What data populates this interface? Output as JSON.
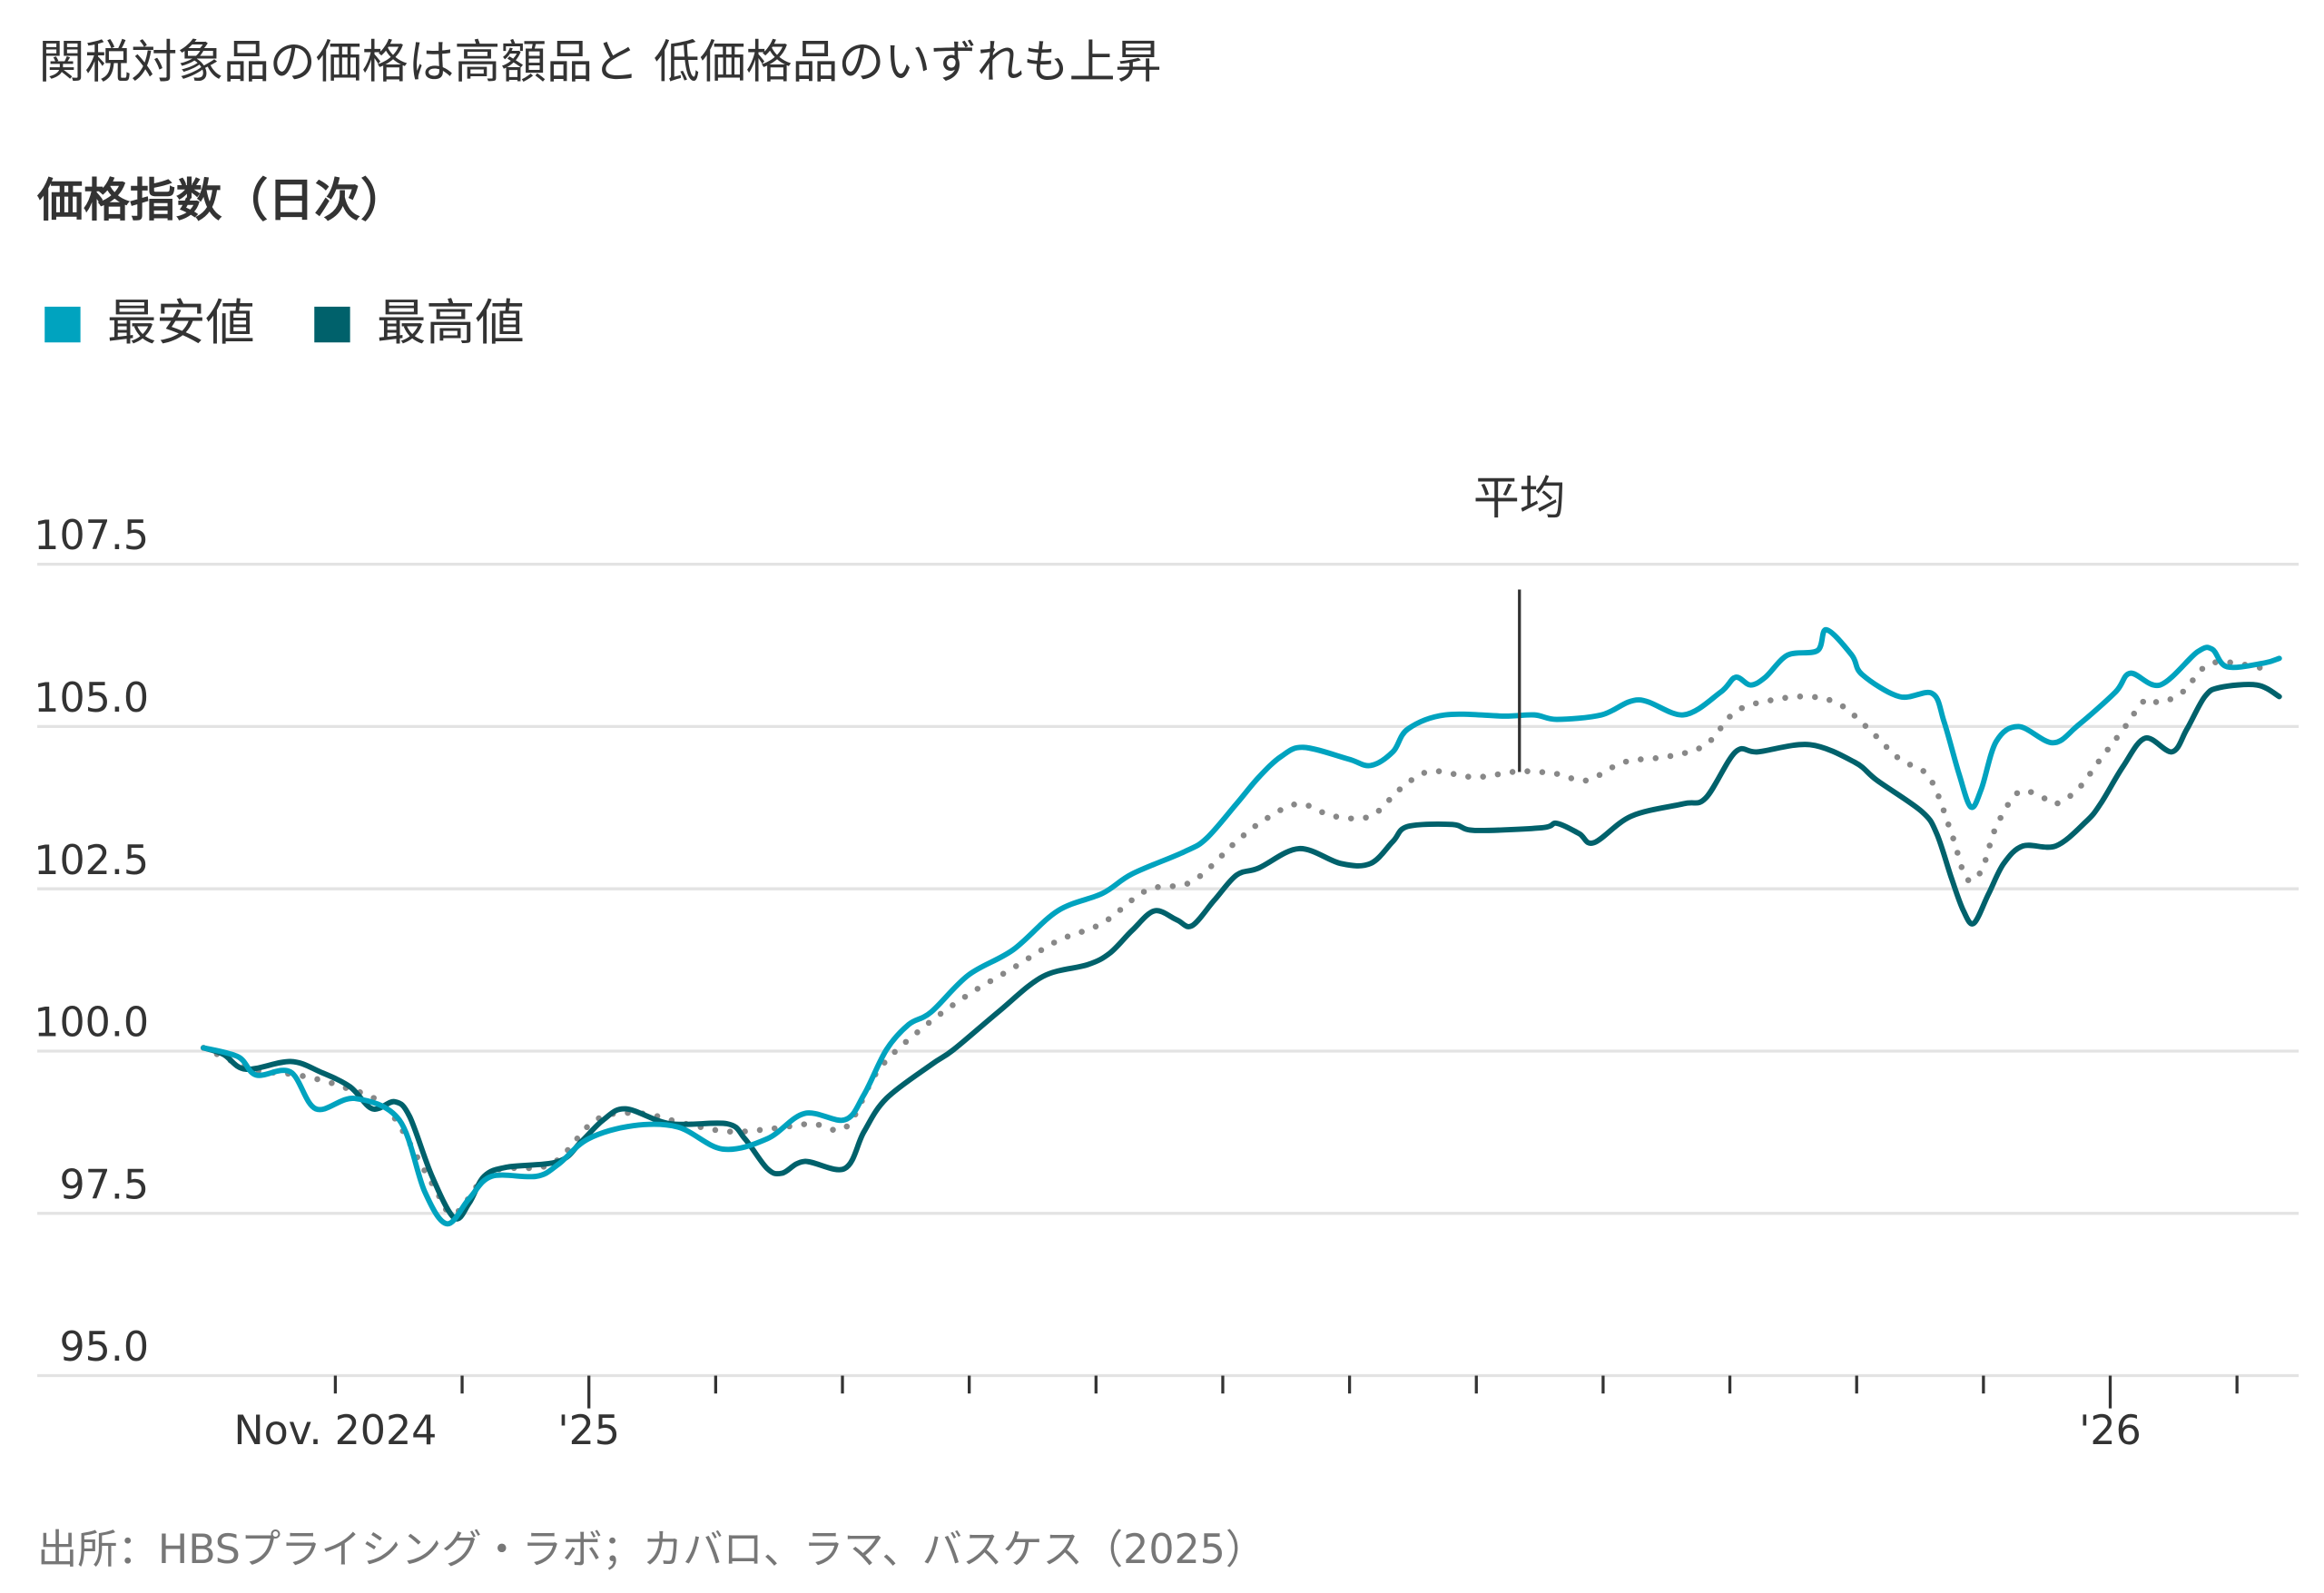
{
  "chart_data": {
    "type": "line",
    "title": "関税対象品の価格は高額品と 低価格品のいずれも上昇",
    "subtitle": "価格指数（日次）",
    "x_unit": "months since Oct. 1, 2024",
    "xlim": [
      -0.1,
      16.6
    ],
    "ylim": [
      95,
      108.5
    ],
    "yticks": [
      {
        "value": 107.5,
        "label": "107.5"
      },
      {
        "value": 105,
        "label": "105.0"
      },
      {
        "value": 102.5,
        "label": "102.5"
      },
      {
        "value": 100,
        "label": "100.0"
      },
      {
        "value": 97.5,
        "label": "97.5"
      },
      {
        "value": 95,
        "label": "95.0"
      }
    ],
    "xticks": [
      1,
      2,
      3,
      4,
      5,
      6,
      7,
      8,
      9,
      10,
      11,
      12,
      13,
      14,
      15,
      16
    ],
    "major_xticks": [
      3,
      15
    ],
    "xtick_labels": [
      {
        "value": 1,
        "label": "Nov. 2024"
      },
      {
        "value": 3,
        "label": "'25"
      },
      {
        "value": 15,
        "label": "'26"
      }
    ],
    "grid": true,
    "legend_position": "top-left",
    "legend": [
      {
        "name": "最安値",
        "color": "#00a3bf"
      },
      {
        "name": "最高値",
        "color": "#00616b"
      }
    ],
    "annotation": {
      "text": "平均",
      "x": 10.34,
      "y": 104.3
    },
    "source": "出所：HBSプライシング・ラボ；カバロ、ラマ、バスケス（2025）",
    "series": [
      {
        "name": "最安値",
        "color": "#00a3bf",
        "style": "solid",
        "points": [
          [
            -0.04,
            100.05
          ],
          [
            0.235,
            99.91
          ],
          [
            0.376,
            99.63
          ],
          [
            0.646,
            99.68
          ],
          [
            0.846,
            99.11
          ],
          [
            1.152,
            99.27
          ],
          [
            1.504,
            98.94
          ],
          [
            1.704,
            97.84
          ],
          [
            1.88,
            97.34
          ],
          [
            2.056,
            97.73
          ],
          [
            2.233,
            98.07
          ],
          [
            2.585,
            98.07
          ],
          [
            2.761,
            98.26
          ],
          [
            2.996,
            98.65
          ],
          [
            3.349,
            98.85
          ],
          [
            3.702,
            98.83
          ],
          [
            4.054,
            98.49
          ],
          [
            4.407,
            98.65
          ],
          [
            4.7,
            99.04
          ],
          [
            5.018,
            98.94
          ],
          [
            5.17,
            99.33
          ],
          [
            5.347,
            100.02
          ],
          [
            5.523,
            100.41
          ],
          [
            5.699,
            100.6
          ],
          [
            5.993,
            101.17
          ],
          [
            6.345,
            101.56
          ],
          [
            6.698,
            102.16
          ],
          [
            7.051,
            102.43
          ],
          [
            7.286,
            102.73
          ],
          [
            7.697,
            103.07
          ],
          [
            7.873,
            103.28
          ],
          [
            8.108,
            103.81
          ],
          [
            8.284,
            104.22
          ],
          [
            8.461,
            104.54
          ],
          [
            8.637,
            104.68
          ],
          [
            8.989,
            104.5
          ],
          [
            9.166,
            104.4
          ],
          [
            9.342,
            104.61
          ],
          [
            9.459,
            104.96
          ],
          [
            9.753,
            105.18
          ],
          [
            10.223,
            105.16
          ],
          [
            10.458,
            105.18
          ],
          [
            10.635,
            105.11
          ],
          [
            10.987,
            105.18
          ],
          [
            11.281,
            105.41
          ],
          [
            11.633,
            105.18
          ],
          [
            11.927,
            105.53
          ],
          [
            12.045,
            105.76
          ],
          [
            12.162,
            105.64
          ],
          [
            12.28,
            105.76
          ],
          [
            12.456,
            106.1
          ],
          [
            12.691,
            106.17
          ],
          [
            12.762,
            106.49
          ],
          [
            12.961,
            106.1
          ],
          [
            13.044,
            105.8
          ],
          [
            13.337,
            105.46
          ],
          [
            13.596,
            105.51
          ],
          [
            13.69,
            105.07
          ],
          [
            13.807,
            104.27
          ],
          [
            13.901,
            103.76
          ],
          [
            13.984,
            104.04
          ],
          [
            14.101,
            104.77
          ],
          [
            14.277,
            105.0
          ],
          [
            14.548,
            104.75
          ],
          [
            14.747,
            105.02
          ],
          [
            15.041,
            105.53
          ],
          [
            15.159,
            105.82
          ],
          [
            15.394,
            105.64
          ],
          [
            15.688,
            106.15
          ],
          [
            15.805,
            106.19
          ],
          [
            15.923,
            105.92
          ],
          [
            16.216,
            105.98
          ],
          [
            16.334,
            106.05
          ]
        ]
      },
      {
        "name": "最高値",
        "color": "#00616b",
        "style": "solid",
        "points": [
          [
            -0.04,
            100.05
          ],
          [
            0.118,
            99.95
          ],
          [
            0.294,
            99.72
          ],
          [
            0.646,
            99.84
          ],
          [
            0.881,
            99.68
          ],
          [
            1.116,
            99.45
          ],
          [
            1.293,
            99.11
          ],
          [
            1.469,
            99.22
          ],
          [
            1.586,
            98.99
          ],
          [
            1.763,
            98.07
          ],
          [
            1.939,
            97.43
          ],
          [
            2.056,
            97.66
          ],
          [
            2.174,
            98.07
          ],
          [
            2.35,
            98.21
          ],
          [
            2.761,
            98.3
          ],
          [
            2.938,
            98.6
          ],
          [
            3.114,
            98.94
          ],
          [
            3.29,
            99.11
          ],
          [
            3.643,
            98.88
          ],
          [
            4.089,
            98.88
          ],
          [
            4.23,
            98.65
          ],
          [
            4.407,
            98.19
          ],
          [
            4.524,
            98.12
          ],
          [
            4.7,
            98.3
          ],
          [
            5.018,
            98.19
          ],
          [
            5.17,
            98.76
          ],
          [
            5.347,
            99.27
          ],
          [
            5.699,
            99.79
          ],
          [
            5.875,
            100.02
          ],
          [
            6.228,
            100.6
          ],
          [
            6.58,
            101.15
          ],
          [
            6.933,
            101.33
          ],
          [
            7.109,
            101.51
          ],
          [
            7.286,
            101.86
          ],
          [
            7.462,
            102.16
          ],
          [
            7.638,
            102.02
          ],
          [
            7.756,
            101.93
          ],
          [
            7.932,
            102.32
          ],
          [
            8.108,
            102.71
          ],
          [
            8.284,
            102.82
          ],
          [
            8.602,
            103.12
          ],
          [
            8.931,
            102.89
          ],
          [
            9.166,
            102.89
          ],
          [
            9.342,
            103.23
          ],
          [
            9.459,
            103.46
          ],
          [
            9.812,
            103.49
          ],
          [
            9.988,
            103.4
          ],
          [
            10.517,
            103.44
          ],
          [
            10.635,
            103.51
          ],
          [
            10.811,
            103.35
          ],
          [
            10.928,
            103.21
          ],
          [
            11.222,
            103.62
          ],
          [
            11.633,
            103.81
          ],
          [
            11.81,
            103.9
          ],
          [
            12.045,
            104.61
          ],
          [
            12.221,
            104.61
          ],
          [
            12.632,
            104.72
          ],
          [
            12.985,
            104.45
          ],
          [
            13.161,
            104.17
          ],
          [
            13.514,
            103.69
          ],
          [
            13.631,
            103.35
          ],
          [
            13.749,
            102.66
          ],
          [
            13.843,
            102.16
          ],
          [
            13.925,
            101.97
          ],
          [
            14.042,
            102.43
          ],
          [
            14.16,
            102.89
          ],
          [
            14.313,
            103.16
          ],
          [
            14.571,
            103.16
          ],
          [
            14.806,
            103.53
          ],
          [
            14.924,
            103.81
          ],
          [
            15.1,
            104.38
          ],
          [
            15.276,
            104.82
          ],
          [
            15.488,
            104.61
          ],
          [
            15.605,
            104.96
          ],
          [
            15.746,
            105.46
          ],
          [
            15.864,
            105.6
          ],
          [
            16.158,
            105.64
          ],
          [
            16.334,
            105.46
          ]
        ]
      },
      {
        "name": "平均",
        "color": "#888888",
        "style": "dotted",
        "points": [
          [
            -0.04,
            100.05
          ],
          [
            0.353,
            99.72
          ],
          [
            0.705,
            99.63
          ],
          [
            1.058,
            99.45
          ],
          [
            1.41,
            99.11
          ],
          [
            1.763,
            97.96
          ],
          [
            1.939,
            97.5
          ],
          [
            2.233,
            98.14
          ],
          [
            2.703,
            98.26
          ],
          [
            3.055,
            98.94
          ],
          [
            3.408,
            99.04
          ],
          [
            3.76,
            98.88
          ],
          [
            4.113,
            98.76
          ],
          [
            4.465,
            98.81
          ],
          [
            4.759,
            98.88
          ],
          [
            5.029,
            98.83
          ],
          [
            5.288,
            99.72
          ],
          [
            5.64,
            100.37
          ],
          [
            5.993,
            100.87
          ],
          [
            6.345,
            101.28
          ],
          [
            6.698,
            101.7
          ],
          [
            7.051,
            101.97
          ],
          [
            7.403,
            102.48
          ],
          [
            7.756,
            102.61
          ],
          [
            8.108,
            103.23
          ],
          [
            8.343,
            103.58
          ],
          [
            8.602,
            103.81
          ],
          [
            8.872,
            103.62
          ],
          [
            9.166,
            103.62
          ],
          [
            9.401,
            104.04
          ],
          [
            9.636,
            104.31
          ],
          [
            9.988,
            104.22
          ],
          [
            10.341,
            104.31
          ],
          [
            10.635,
            104.27
          ],
          [
            10.87,
            104.17
          ],
          [
            11.163,
            104.45
          ],
          [
            11.516,
            104.54
          ],
          [
            11.81,
            104.72
          ],
          [
            12.045,
            105.23
          ],
          [
            12.338,
            105.41
          ],
          [
            12.632,
            105.46
          ],
          [
            12.867,
            105.34
          ],
          [
            13.102,
            104.95
          ],
          [
            13.337,
            104.5
          ],
          [
            13.572,
            104.22
          ],
          [
            13.749,
            103.35
          ],
          [
            13.866,
            102.66
          ],
          [
            13.984,
            102.78
          ],
          [
            14.101,
            103.46
          ],
          [
            14.277,
            103.99
          ],
          [
            14.454,
            103.92
          ],
          [
            14.571,
            103.81
          ],
          [
            14.747,
            104.04
          ],
          [
            14.924,
            104.5
          ],
          [
            15.1,
            104.95
          ],
          [
            15.276,
            105.41
          ],
          [
            15.394,
            105.37
          ],
          [
            15.57,
            105.53
          ],
          [
            15.746,
            105.92
          ],
          [
            15.923,
            105.99
          ],
          [
            16.275,
            105.87
          ]
        ]
      }
    ]
  }
}
